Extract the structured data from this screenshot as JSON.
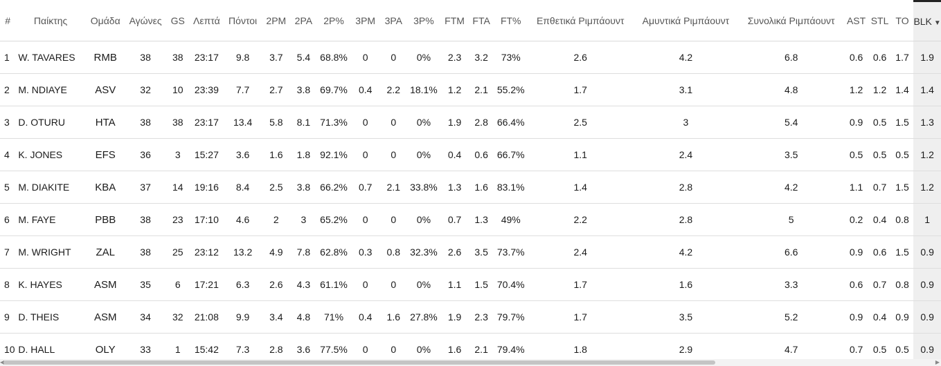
{
  "table": {
    "headers": [
      "#",
      "Παίκτης",
      "Ομάδα",
      "Αγώνες",
      "GS",
      "Λεπτά",
      "Πόντοι",
      "2PM",
      "2PA",
      "2P%",
      "3PM",
      "3PA",
      "3P%",
      "FTM",
      "FTA",
      "FT%",
      "Επθετικά Ριμπάουντ",
      "Αμυντικά Ριμπάουντ",
      "Συνολικά Ριμπάουντ",
      "AST",
      "STL",
      "TO",
      "BLK"
    ],
    "sorted_column": "BLK",
    "sort_direction": "descending",
    "rows": [
      [
        "1",
        "W. TAVARES",
        "RMB",
        "38",
        "38",
        "23:17",
        "9.8",
        "3.7",
        "5.4",
        "68.8%",
        "0",
        "0",
        "0%",
        "2.3",
        "3.2",
        "73%",
        "2.6",
        "4.2",
        "6.8",
        "0.6",
        "0.6",
        "1.7",
        "1.9"
      ],
      [
        "2",
        "M. NDIAYE",
        "ASV",
        "32",
        "10",
        "23:39",
        "7.7",
        "2.7",
        "3.8",
        "69.7%",
        "0.4",
        "2.2",
        "18.1%",
        "1.2",
        "2.1",
        "55.2%",
        "1.7",
        "3.1",
        "4.8",
        "1.2",
        "1.2",
        "1.4",
        "1.4"
      ],
      [
        "3",
        "D. OTURU",
        "HTA",
        "38",
        "38",
        "23:17",
        "13.4",
        "5.8",
        "8.1",
        "71.3%",
        "0",
        "0",
        "0%",
        "1.9",
        "2.8",
        "66.4%",
        "2.5",
        "3",
        "5.4",
        "0.9",
        "0.5",
        "1.5",
        "1.3"
      ],
      [
        "4",
        "K. JONES",
        "EFS",
        "36",
        "3",
        "15:27",
        "3.6",
        "1.6",
        "1.8",
        "92.1%",
        "0",
        "0",
        "0%",
        "0.4",
        "0.6",
        "66.7%",
        "1.1",
        "2.4",
        "3.5",
        "0.5",
        "0.5",
        "0.5",
        "1.2"
      ],
      [
        "5",
        "M. DIAKITE",
        "KBA",
        "37",
        "14",
        "19:16",
        "8.4",
        "2.5",
        "3.8",
        "66.2%",
        "0.7",
        "2.1",
        "33.8%",
        "1.3",
        "1.6",
        "83.1%",
        "1.4",
        "2.8",
        "4.2",
        "1.1",
        "0.7",
        "1.5",
        "1.2"
      ],
      [
        "6",
        "M. FAYE",
        "PBB",
        "38",
        "23",
        "17:10",
        "4.6",
        "2",
        "3",
        "65.2%",
        "0",
        "0",
        "0%",
        "0.7",
        "1.3",
        "49%",
        "2.2",
        "2.8",
        "5",
        "0.2",
        "0.4",
        "0.8",
        "1"
      ],
      [
        "7",
        "M. WRIGHT",
        "ZAL",
        "38",
        "25",
        "23:12",
        "13.2",
        "4.9",
        "7.8",
        "62.8%",
        "0.3",
        "0.8",
        "32.3%",
        "2.6",
        "3.5",
        "73.7%",
        "2.4",
        "4.2",
        "6.6",
        "0.9",
        "0.6",
        "1.5",
        "0.9"
      ],
      [
        "8",
        "K. HAYES",
        "ASM",
        "35",
        "6",
        "17:21",
        "6.3",
        "2.6",
        "4.3",
        "61.1%",
        "0",
        "0",
        "0%",
        "1.1",
        "1.5",
        "70.4%",
        "1.7",
        "1.6",
        "3.3",
        "0.6",
        "0.7",
        "0.8",
        "0.9"
      ],
      [
        "9",
        "D. THEIS",
        "ASM",
        "34",
        "32",
        "21:08",
        "9.9",
        "3.4",
        "4.8",
        "71%",
        "0.4",
        "1.6",
        "27.8%",
        "1.9",
        "2.3",
        "79.7%",
        "1.7",
        "3.5",
        "5.2",
        "0.9",
        "0.4",
        "0.9",
        "0.9"
      ],
      [
        "10",
        "D. HALL",
        "OLY",
        "33",
        "1",
        "15:42",
        "7.3",
        "2.8",
        "3.6",
        "77.5%",
        "0",
        "0",
        "0%",
        "1.6",
        "2.1",
        "79.4%",
        "1.8",
        "2.9",
        "4.7",
        "0.7",
        "0.5",
        "0.5",
        "0.9"
      ]
    ]
  },
  "icons": {
    "sort": "caret-down-icon"
  },
  "colors": {
    "sorted_column_bg": "#efefef",
    "row_divider": "#dedede",
    "header_text": "#555555"
  }
}
